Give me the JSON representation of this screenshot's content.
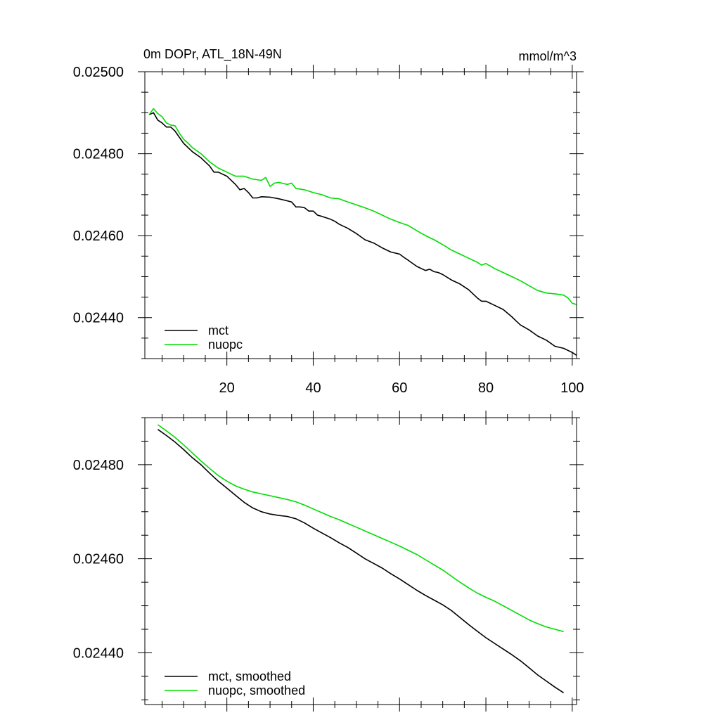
{
  "chart_data": [
    {
      "type": "line",
      "title": "0m DOPr, ATL_18N-49N",
      "units": "mmol/m^3",
      "xlabel": "",
      "ylabel": "",
      "xlim": [
        1,
        101
      ],
      "ylim": [
        0.0243,
        0.025
      ],
      "xticks": [
        20,
        40,
        60,
        80,
        100
      ],
      "xtick_labels": [
        "20",
        "40",
        "60",
        "80",
        "100"
      ],
      "yticks": [
        0.0244,
        0.0246,
        0.0248,
        0.025
      ],
      "ytick_labels": [
        "0.02440",
        "0.02460",
        "0.02480",
        "0.02500"
      ],
      "legend_position": "bottom-left",
      "series": [
        {
          "name": "mct",
          "color": "#000000",
          "x": [
            2,
            3,
            4,
            5,
            6,
            7,
            8,
            9,
            10,
            12,
            14,
            16,
            17,
            18,
            20,
            22,
            23,
            24,
            25,
            26,
            27,
            28,
            30,
            32,
            34,
            35,
            36,
            37,
            38,
            39,
            40,
            41,
            42,
            44,
            45,
            46,
            48,
            50,
            52,
            54,
            56,
            58,
            60,
            61,
            62,
            64,
            66,
            67,
            68,
            69,
            70,
            72,
            74,
            76,
            78,
            79,
            80,
            82,
            84,
            86,
            87,
            88,
            90,
            92,
            94,
            96,
            98,
            100,
            101
          ],
          "values": [
            0.024895,
            0.0249,
            0.024882,
            0.024875,
            0.024865,
            0.024865,
            0.024855,
            0.02484,
            0.024825,
            0.024805,
            0.02479,
            0.02477,
            0.024755,
            0.024755,
            0.024745,
            0.024725,
            0.024712,
            0.024715,
            0.024705,
            0.024692,
            0.024692,
            0.024695,
            0.024694,
            0.02469,
            0.024685,
            0.024682,
            0.02467,
            0.02467,
            0.024668,
            0.02466,
            0.02466,
            0.02465,
            0.024647,
            0.02464,
            0.024635,
            0.024628,
            0.024618,
            0.024605,
            0.02459,
            0.024582,
            0.02457,
            0.02456,
            0.024555,
            0.024547,
            0.02454,
            0.024525,
            0.024515,
            0.024518,
            0.024512,
            0.02451,
            0.024505,
            0.024492,
            0.024482,
            0.024468,
            0.024448,
            0.02444,
            0.02444,
            0.02443,
            0.02442,
            0.024402,
            0.024392,
            0.024382,
            0.02437,
            0.024355,
            0.024345,
            0.02433,
            0.024325,
            0.024315,
            0.024308
          ]
        },
        {
          "name": "nuopc",
          "color": "#00dd00",
          "x": [
            2,
            3,
            4,
            5,
            6,
            7,
            8,
            9,
            10,
            11,
            12,
            14,
            16,
            18,
            20,
            22,
            24,
            26,
            28,
            29,
            30,
            31,
            32,
            34,
            35,
            36,
            38,
            40,
            42,
            44,
            46,
            48,
            50,
            52,
            54,
            56,
            58,
            60,
            62,
            64,
            66,
            68,
            70,
            72,
            74,
            76,
            78,
            79,
            80,
            82,
            84,
            86,
            88,
            90,
            92,
            94,
            96,
            98,
            99,
            100,
            101
          ],
          "values": [
            0.024895,
            0.02491,
            0.024898,
            0.02489,
            0.024875,
            0.02487,
            0.024868,
            0.02485,
            0.024835,
            0.024826,
            0.024815,
            0.0248,
            0.02478,
            0.024765,
            0.024755,
            0.024745,
            0.024745,
            0.024738,
            0.024735,
            0.024742,
            0.02472,
            0.024728,
            0.02473,
            0.024725,
            0.024728,
            0.024715,
            0.024712,
            0.024705,
            0.0247,
            0.024692,
            0.02469,
            0.024682,
            0.024675,
            0.024668,
            0.02466,
            0.02465,
            0.02464,
            0.024632,
            0.024625,
            0.024612,
            0.0246,
            0.02459,
            0.024578,
            0.024565,
            0.024555,
            0.024545,
            0.024535,
            0.024528,
            0.024532,
            0.02452,
            0.02451,
            0.0245,
            0.02449,
            0.024478,
            0.024466,
            0.02446,
            0.024458,
            0.024455,
            0.024448,
            0.024435,
            0.024432
          ]
        }
      ]
    },
    {
      "type": "line",
      "title": "",
      "xlabel": "",
      "ylabel": "",
      "xlim": [
        1,
        101
      ],
      "ylim": [
        0.02429,
        0.0249
      ],
      "yticks": [
        0.0244,
        0.0246,
        0.0248
      ],
      "ytick_labels": [
        "0.02440",
        "0.02460",
        "0.02480"
      ],
      "legend_position": "bottom-left",
      "series": [
        {
          "name": "mct, smoothed",
          "color": "#000000",
          "x": [
            4,
            6,
            8,
            10,
            12,
            14,
            16,
            18,
            20,
            22,
            24,
            26,
            28,
            30,
            32,
            34,
            36,
            38,
            40,
            42,
            44,
            46,
            48,
            50,
            52,
            54,
            56,
            58,
            60,
            62,
            64,
            66,
            68,
            70,
            72,
            74,
            76,
            78,
            80,
            82,
            84,
            86,
            88,
            90,
            92,
            94,
            96,
            98
          ],
          "values": [
            0.024875,
            0.024862,
            0.024848,
            0.024832,
            0.024815,
            0.0248,
            0.024782,
            0.024765,
            0.02475,
            0.024735,
            0.02472,
            0.024708,
            0.0247,
            0.024695,
            0.024692,
            0.02469,
            0.024685,
            0.024676,
            0.024665,
            0.024655,
            0.024645,
            0.024634,
            0.024624,
            0.024612,
            0.0246,
            0.02459,
            0.02458,
            0.024568,
            0.024557,
            0.024545,
            0.024533,
            0.024522,
            0.024512,
            0.024502,
            0.02449,
            0.024475,
            0.02446,
            0.024446,
            0.024432,
            0.02442,
            0.024408,
            0.024396,
            0.024383,
            0.024368,
            0.024353,
            0.02434,
            0.024327,
            0.024315
          ]
        },
        {
          "name": "nuopc, smoothed",
          "color": "#00dd00",
          "x": [
            4,
            6,
            8,
            10,
            12,
            14,
            16,
            18,
            20,
            22,
            24,
            26,
            28,
            30,
            32,
            34,
            36,
            38,
            40,
            42,
            44,
            46,
            48,
            50,
            52,
            54,
            56,
            58,
            60,
            62,
            64,
            66,
            68,
            70,
            72,
            74,
            76,
            78,
            80,
            82,
            84,
            86,
            88,
            90,
            92,
            94,
            96,
            98
          ],
          "values": [
            0.024885,
            0.024872,
            0.024858,
            0.024842,
            0.024825,
            0.024808,
            0.024792,
            0.024777,
            0.024765,
            0.024755,
            0.024748,
            0.024742,
            0.024738,
            0.024734,
            0.02473,
            0.024726,
            0.024721,
            0.024714,
            0.024706,
            0.024698,
            0.02469,
            0.024683,
            0.024675,
            0.024667,
            0.024659,
            0.024651,
            0.024643,
            0.024635,
            0.024627,
            0.024618,
            0.024609,
            0.024598,
            0.024587,
            0.024576,
            0.024563,
            0.02455,
            0.024538,
            0.024527,
            0.024518,
            0.02451,
            0.0245,
            0.02449,
            0.02448,
            0.02447,
            0.024462,
            0.024455,
            0.02445,
            0.024445
          ]
        }
      ]
    }
  ]
}
